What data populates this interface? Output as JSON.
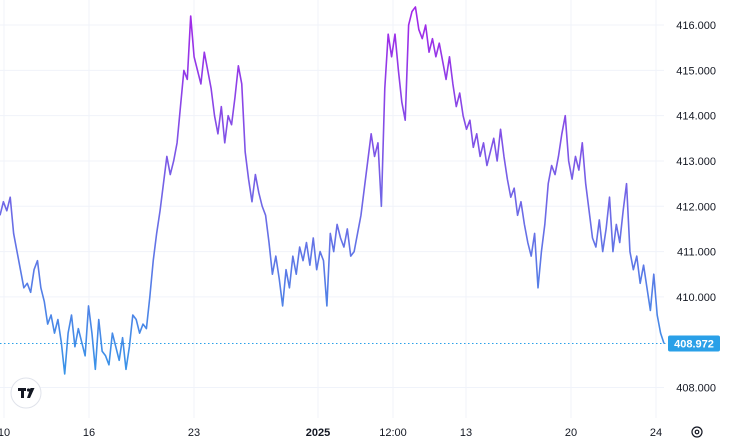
{
  "chart_data": {
    "type": "line",
    "title": "",
    "xlabel": "",
    "ylabel": "",
    "ylim": [
      407.6,
      416.8
    ],
    "y_ticks": [
      "408.000",
      "410.000",
      "411.000",
      "412.000",
      "413.000",
      "414.000",
      "415.000",
      "416.000"
    ],
    "x_ticks": [
      {
        "label": "10",
        "major": false
      },
      {
        "label": "16",
        "major": false
      },
      {
        "label": "23",
        "major": false
      },
      {
        "label": "2025",
        "major": true
      },
      {
        "label": "12:00",
        "major": false
      },
      {
        "label": "13",
        "major": false
      },
      {
        "label": "20",
        "major": false
      },
      {
        "label": "24",
        "major": false
      }
    ],
    "grid": true,
    "legend": "none",
    "last_value": "408.972",
    "colors": {
      "line_low": "#2aa0e8",
      "line_mid": "#6c6ce6",
      "line_high": "#a128e8",
      "price_label": "#2aa0e8",
      "grid": "#f0f3fa",
      "axis_text": "#131722"
    },
    "icons": [
      "tradingview-logo-icon",
      "settings-gear-icon"
    ],
    "series": [
      {
        "values": [
          411.8,
          412.1,
          411.9,
          412.2,
          411.4,
          411.0,
          410.6,
          410.2,
          410.3,
          410.1,
          410.6,
          410.8,
          410.2,
          409.9,
          409.4,
          409.6,
          409.2,
          409.5,
          409.0,
          408.3,
          409.2,
          409.6,
          408.9,
          409.3,
          409.0,
          408.7,
          409.8,
          409.2,
          408.4,
          409.5,
          408.8,
          408.7,
          408.5,
          409.2,
          408.9,
          408.6,
          409.1,
          408.4,
          408.9,
          409.6,
          409.5,
          409.2,
          409.4,
          409.3,
          410.0,
          410.8,
          411.4,
          411.9,
          412.5,
          413.1,
          412.7,
          413.0,
          413.4,
          414.2,
          415.0,
          414.8,
          416.2,
          415.3,
          415.0,
          414.7,
          415.4,
          415.0,
          414.6,
          414.0,
          413.6,
          414.2,
          413.4,
          414.0,
          413.8,
          414.4,
          415.1,
          414.7,
          413.2,
          412.6,
          412.1,
          412.7,
          412.3,
          412.0,
          411.8,
          411.2,
          410.5,
          410.9,
          410.4,
          409.8,
          410.6,
          410.2,
          410.9,
          410.5,
          411.1,
          410.8,
          411.2,
          410.7,
          411.3,
          410.6,
          411.0,
          410.8,
          409.8,
          411.4,
          411.0,
          411.6,
          411.3,
          411.1,
          411.5,
          410.9,
          411.0,
          411.4,
          411.8,
          412.4,
          413.0,
          413.6,
          413.1,
          413.4,
          412.0,
          414.6,
          415.8,
          415.3,
          415.8,
          415.0,
          414.3,
          413.9,
          416.0,
          416.3,
          416.4,
          415.9,
          415.7,
          416.0,
          415.4,
          415.7,
          415.3,
          415.6,
          415.2,
          414.8,
          415.3,
          414.7,
          414.2,
          414.5,
          414.0,
          413.7,
          413.9,
          413.3,
          413.6,
          413.1,
          413.4,
          412.9,
          413.2,
          413.5,
          413.0,
          413.7,
          413.1,
          412.6,
          412.2,
          412.4,
          411.8,
          412.1,
          411.6,
          411.2,
          410.9,
          411.4,
          410.2,
          411.0,
          411.6,
          412.5,
          412.9,
          412.7,
          413.1,
          413.6,
          414.0,
          413.0,
          412.6,
          413.1,
          412.8,
          413.4,
          412.5,
          411.9,
          411.3,
          411.1,
          411.7,
          411.0,
          411.5,
          412.2,
          411.0,
          411.6,
          411.2,
          411.9,
          412.5,
          411.0,
          410.6,
          410.9,
          410.3,
          410.7,
          410.2,
          409.7,
          410.5,
          409.6,
          409.2,
          408.972
        ]
      }
    ]
  }
}
